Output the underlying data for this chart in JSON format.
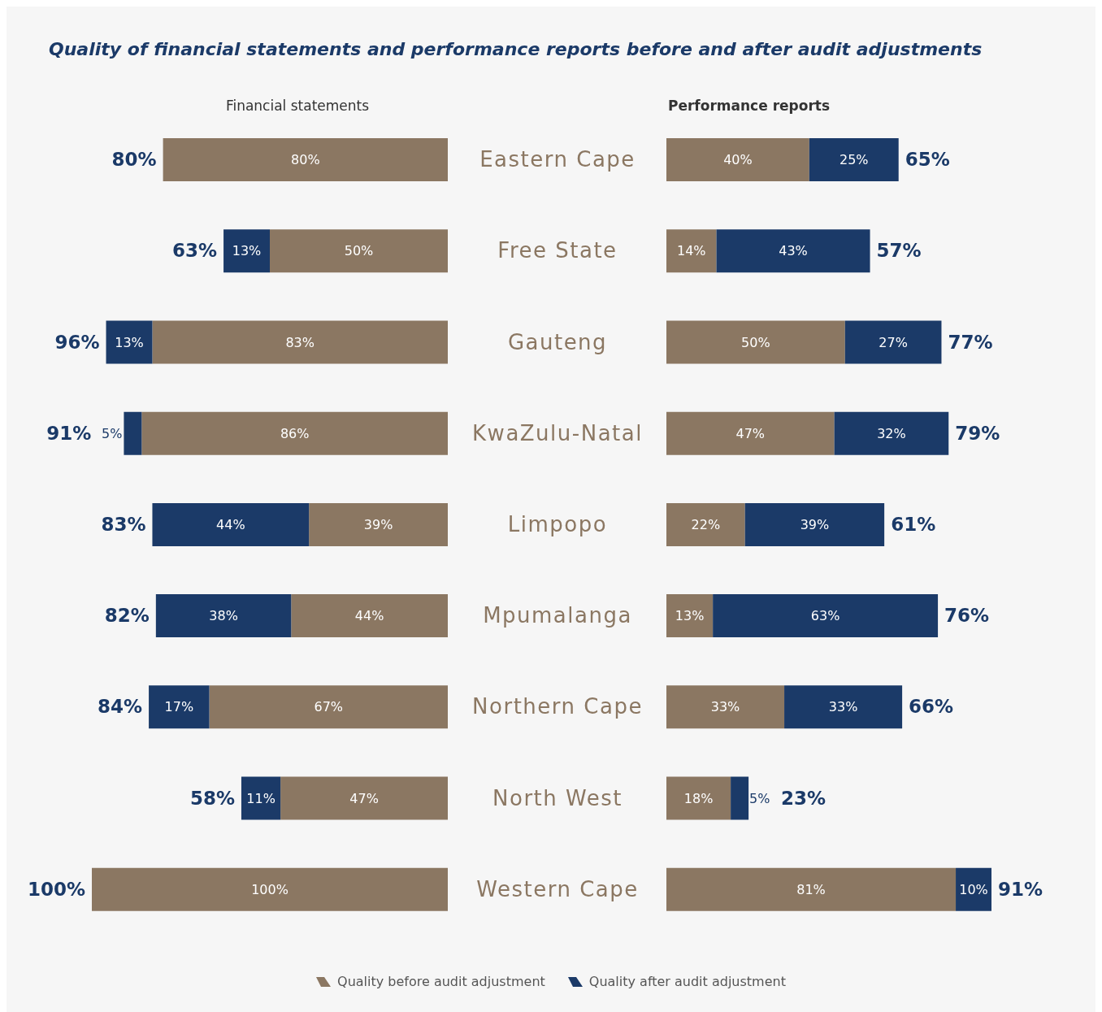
{
  "chart_data": [
    {
      "type": "bar",
      "orientation": "horizontal",
      "stacked": true,
      "title": "Quality of financial statements and performance reports before and after audit adjustments",
      "subtitle": "Financial statements",
      "categories": [
        "Eastern Cape",
        "Free State",
        "Gauteng",
        "KwaZulu-Natal",
        "Limpopo",
        "Mpumalanga",
        "Northern Cape",
        "North West",
        "Western Cape"
      ],
      "xlim": [
        100,
        0
      ],
      "tick_labels": "y",
      "series": [
        {
          "color": "#8b7762",
          "values": [
            80,
            50,
            83,
            86,
            39,
            44,
            67,
            47,
            100
          ],
          "value_labels": [
            "80%",
            "50%",
            "83%",
            "86%",
            "39%",
            "44%",
            "67%",
            "47%",
            "100%"
          ]
        },
        {
          "color": "#1b3a68",
          "values": [
            null,
            13,
            13,
            5,
            44,
            38,
            17,
            11,
            null
          ],
          "value_labels": [
            null,
            "13%",
            "13%",
            "5%",
            "44%",
            "38%",
            "17%",
            "11%",
            null
          ]
        }
      ],
      "totals": [
        "80%",
        "63%",
        "96%",
        "91%",
        "83%",
        "82%",
        "84%",
        "58%",
        "100%"
      ]
    },
    {
      "type": "bar",
      "orientation": "horizontal",
      "stacked": true,
      "subtitle": "Performance reports",
      "categories": [
        null,
        null,
        null,
        null,
        null,
        null,
        null,
        null,
        null
      ],
      "tick_labels": false,
      "legend": "bottom",
      "series": [
        {
          "name": "Quality before audit adjustment",
          "color": "#8b7762",
          "values": [
            40,
            14,
            50,
            47,
            22,
            13,
            33,
            18,
            81
          ],
          "value_labels": [
            "40%",
            "14%",
            "50%",
            "47%",
            "22%",
            "13%",
            "33%",
            "18%",
            "81%"
          ]
        },
        {
          "name": "Quality after audit adjustment",
          "color": "#1b3a68",
          "values": [
            25,
            43,
            27,
            32,
            39,
            63,
            33,
            5,
            10
          ],
          "value_labels": [
            "25%",
            "43%",
            "27%",
            "32%",
            "39%",
            "63%",
            "33%",
            "5%",
            "10%"
          ]
        }
      ],
      "totals": [
        "65%",
        "57%",
        "77%",
        "79%",
        "61%",
        "76%",
        "66%",
        "23%",
        "91%"
      ]
    }
  ]
}
